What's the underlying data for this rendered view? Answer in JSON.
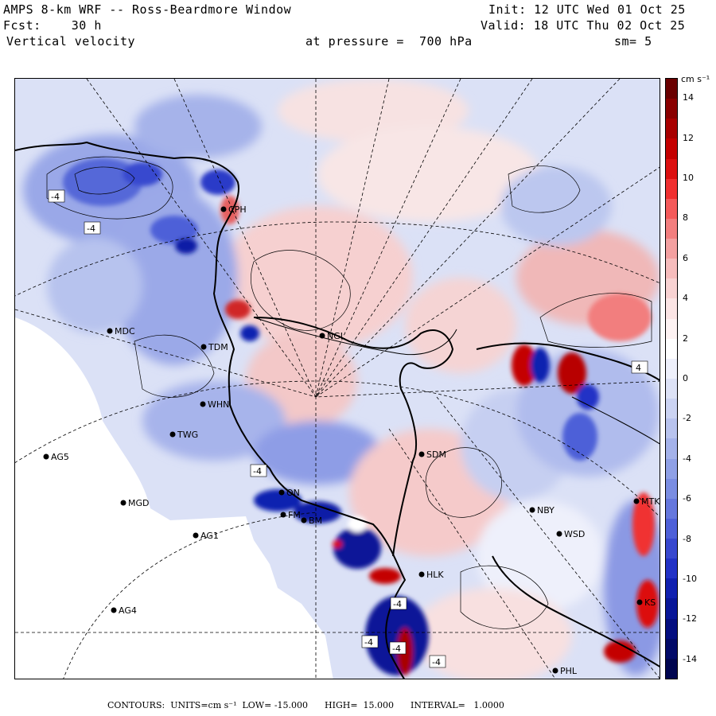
{
  "header": {
    "title": "AMPS 8-km WRF -- Ross-Beardmore Window",
    "forecast": "Fcst:    30 h",
    "field": "Vertical velocity",
    "init": "Init: 12 UTC Wed 01 Oct 25",
    "valid": "Valid: 18 UTC Thu 02 Oct 25",
    "pressure": "at pressure =  700 hPa",
    "smooth": "sm= 5"
  },
  "colorbar": {
    "units": "cm s⁻¹",
    "ticks": [
      "14",
      "12",
      "10",
      "8",
      "6",
      "4",
      "2",
      "0",
      "-2",
      "-4",
      "-6",
      "-8",
      "-10",
      "-12",
      "-14"
    ],
    "tick_values": [
      14,
      12,
      10,
      8,
      6,
      4,
      2,
      0,
      -2,
      -4,
      -6,
      -8,
      -10,
      -12,
      -14
    ],
    "range": [
      -15,
      15
    ],
    "colors_high_to_low": [
      "#6a0000",
      "#8a0000",
      "#a80000",
      "#c40000",
      "#dc1010",
      "#f03030",
      "#f45a5a",
      "#f27e7e",
      "#f3a0a0",
      "#f6bcbc",
      "#f8d2d2",
      "#fbe4e4",
      "#fdf2f2",
      "#ffffff",
      "#eef0fb",
      "#dde2f6",
      "#cbd3f2",
      "#b8c3ee",
      "#a4b2ea",
      "#8fa0e6",
      "#7a8de2",
      "#6577dd",
      "#4e60d8",
      "#3848cf",
      "#2232c6",
      "#1020b0",
      "#081698",
      "#040e80",
      "#020a68",
      "#000550"
    ]
  },
  "stations": [
    {
      "id": "CPH",
      "x_km": 262,
      "y_km": 164
    },
    {
      "id": "MDC",
      "x_km": 119,
      "y_km": 317
    },
    {
      "id": "TDM",
      "x_km": 237,
      "y_km": 337
    },
    {
      "id": "NGL",
      "x_km": 386,
      "y_km": 323
    },
    {
      "id": "WHN",
      "x_km": 236,
      "y_km": 409
    },
    {
      "id": "TWG",
      "x_km": 198,
      "y_km": 447
    },
    {
      "id": "AG5",
      "x_km": 39,
      "y_km": 475
    },
    {
      "id": "SDM",
      "x_km": 511,
      "y_km": 472
    },
    {
      "id": "MGD",
      "x_km": 136,
      "y_km": 533
    },
    {
      "id": "NBY",
      "x_km": 650,
      "y_km": 542
    },
    {
      "id": "AG1",
      "x_km": 227,
      "y_km": 574
    },
    {
      "id": "WSD",
      "x_km": 684,
      "y_km": 572
    },
    {
      "id": "HLK",
      "x_km": 511,
      "y_km": 623
    },
    {
      "id": "AG4",
      "x_km": 124,
      "y_km": 668
    },
    {
      "id": "PHL",
      "x_km": 679,
      "y_km": 744
    },
    {
      "id": "MTK",
      "x_km": 781,
      "y_km": 531
    },
    {
      "id": "BM",
      "x_km": 363,
      "y_km": 555
    },
    {
      "id": "FM",
      "x_km": 337,
      "y_km": 548
    },
    {
      "id": "ON",
      "x_km": 335,
      "y_km": 520
    },
    {
      "id": "KS",
      "x_km": 785,
      "y_km": 658
    }
  ],
  "contour_labels": [
    "-4",
    "-4",
    "-4",
    "-4",
    "-4",
    "-4",
    "-4",
    "4"
  ],
  "footer": {
    "text": "CONTOURS:  UNITS=cm s⁻¹  LOW= -15.000      HIGH=  15.000      INTERVAL=   1.0000"
  }
}
